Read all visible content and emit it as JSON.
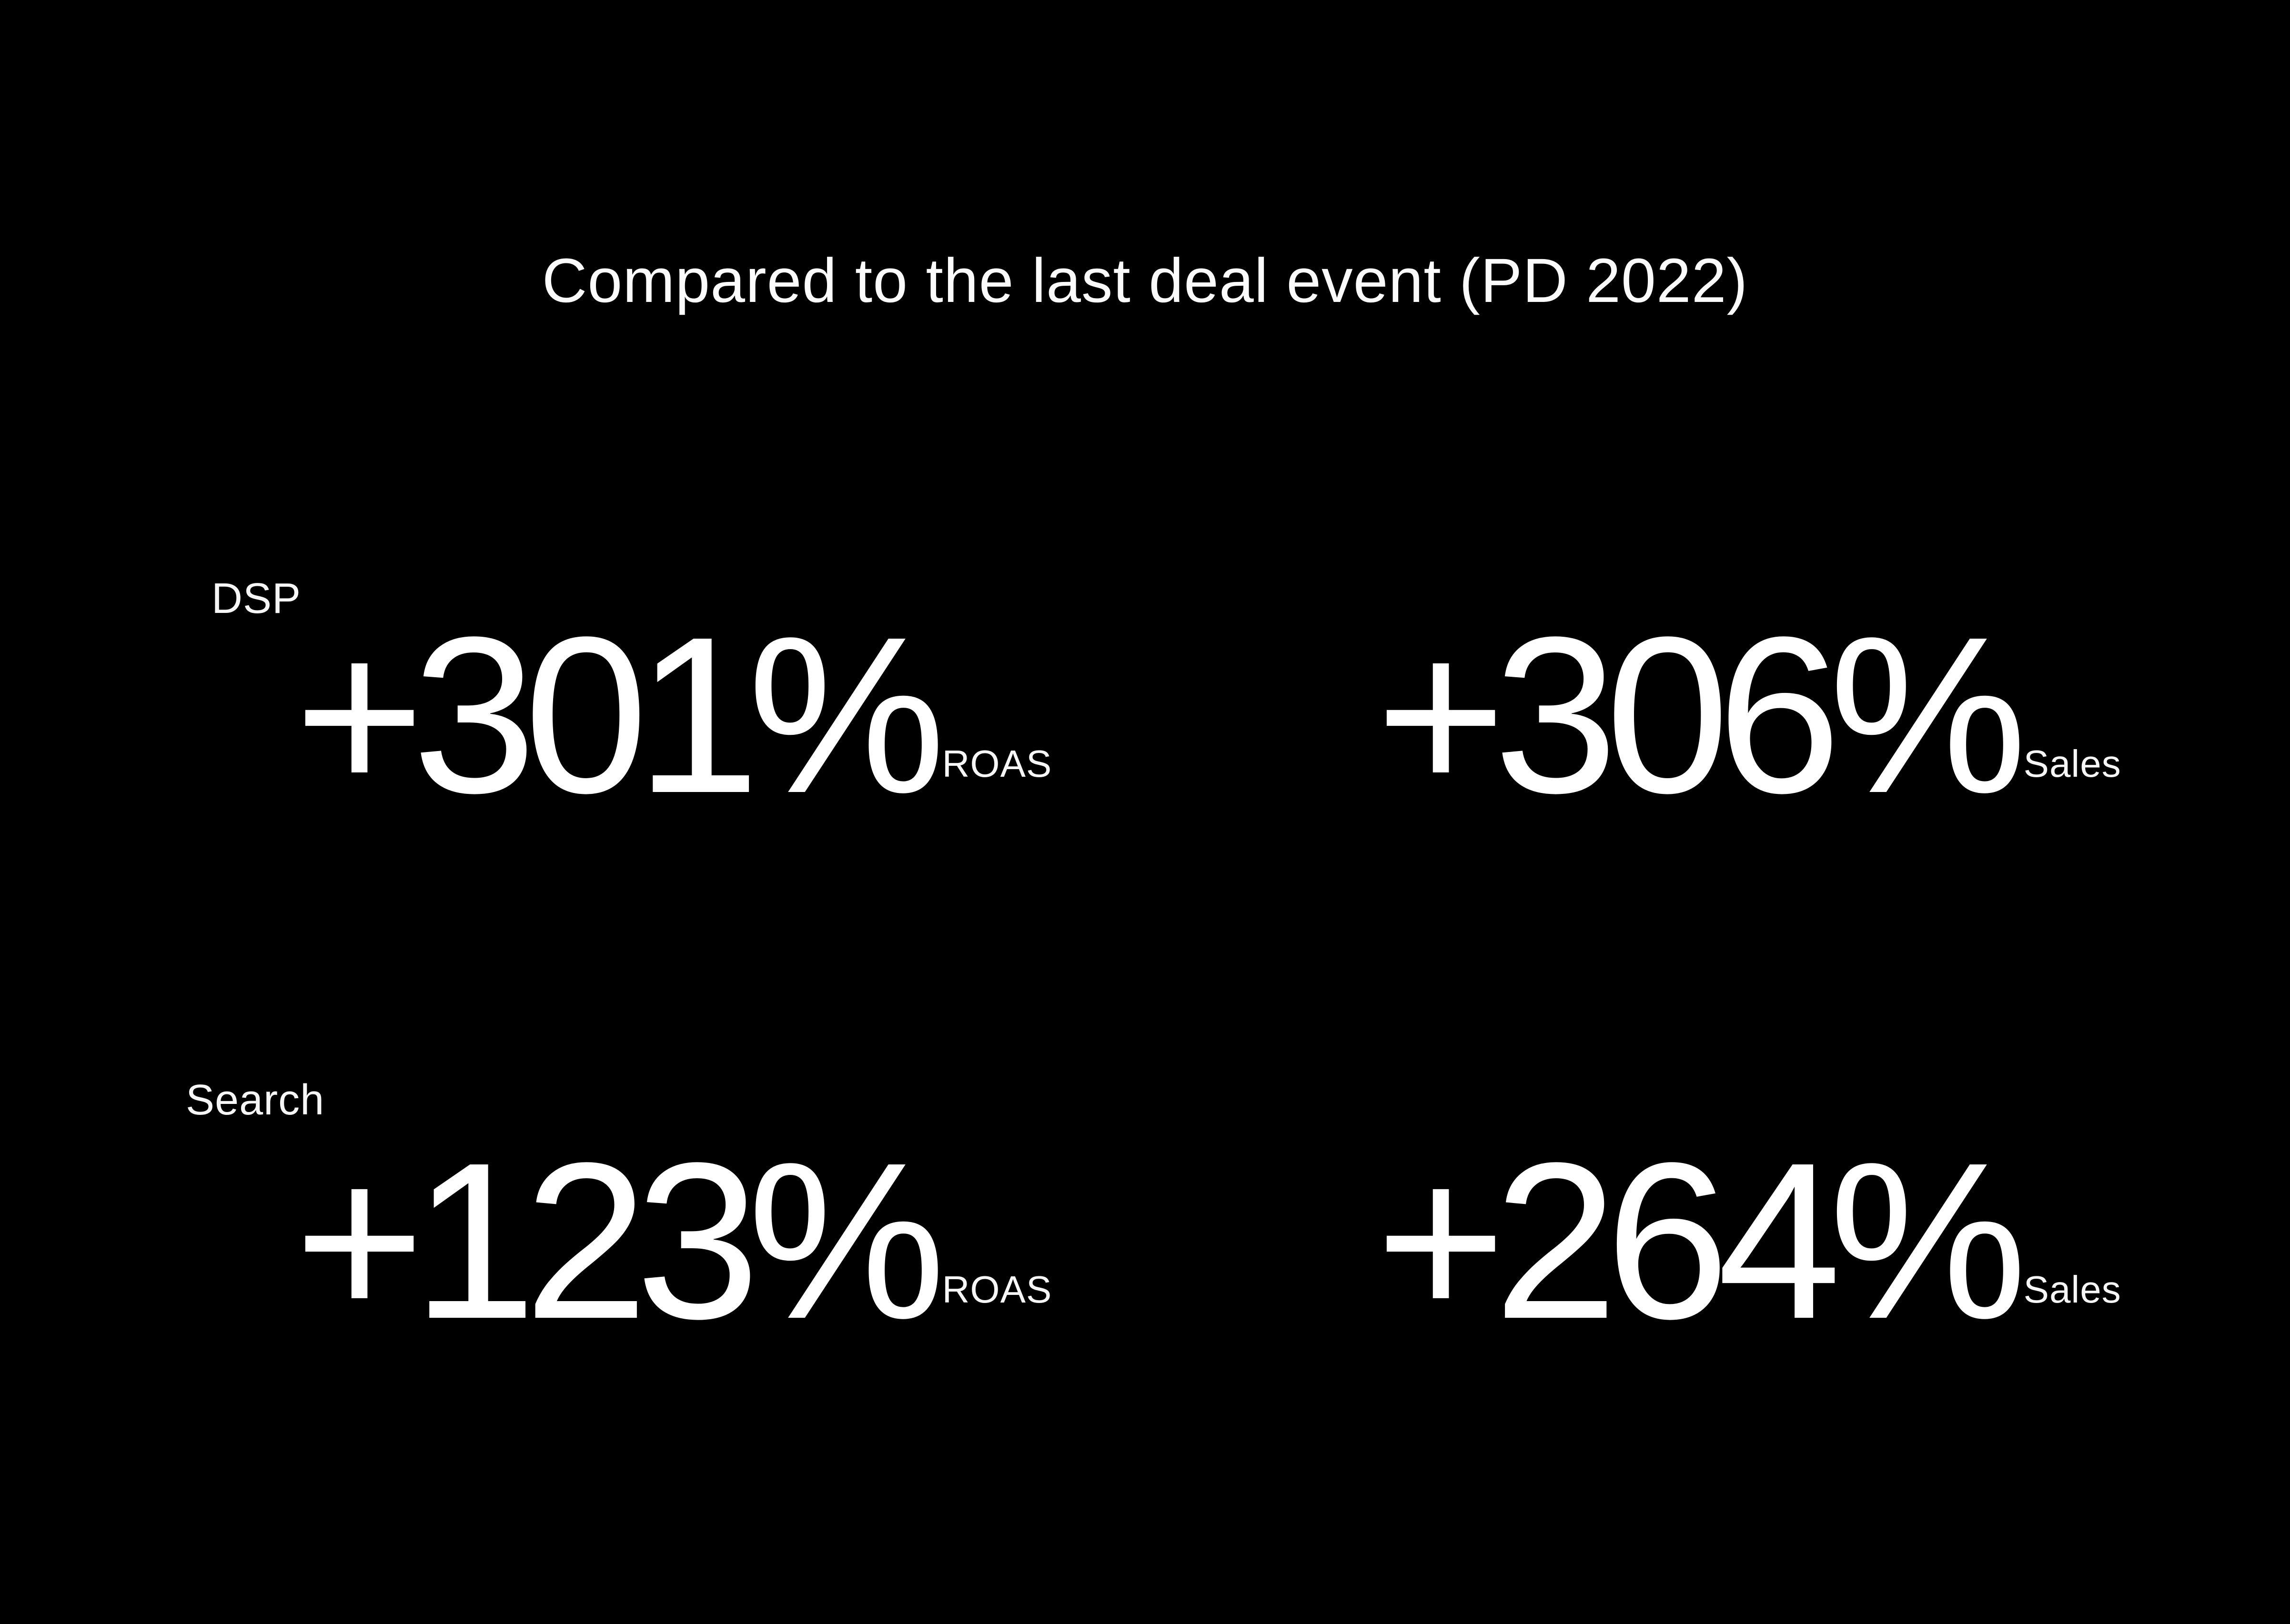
{
  "page": {
    "background_color": "#000000",
    "text_color": "#ffffff"
  },
  "header": {
    "title": "Compared to the last deal event (PD 2022)"
  },
  "stats": [
    {
      "group": "DSP",
      "metrics": [
        {
          "value": "+301%",
          "unit": "ROAS"
        },
        {
          "value": "+306%",
          "unit": "Sales"
        }
      ]
    },
    {
      "group": "Search",
      "metrics": [
        {
          "value": "+123%",
          "unit": "ROAS"
        },
        {
          "value": "+264%",
          "unit": "Sales"
        }
      ]
    }
  ],
  "chart_data": {
    "type": "table",
    "title": "Compared to the last deal event (PD 2022)",
    "rows": [
      "DSP",
      "Search"
    ],
    "columns": [
      "ROAS",
      "Sales"
    ],
    "values": [
      [
        "+301%",
        "+306%"
      ],
      [
        "+123%",
        "+264%"
      ]
    ],
    "value_unit": "percent change vs PD 2022",
    "layout_hints": {
      "background": "black",
      "grid": false,
      "legend": false,
      "style": "large KPI figures, 2 rows x 2 columns"
    }
  }
}
